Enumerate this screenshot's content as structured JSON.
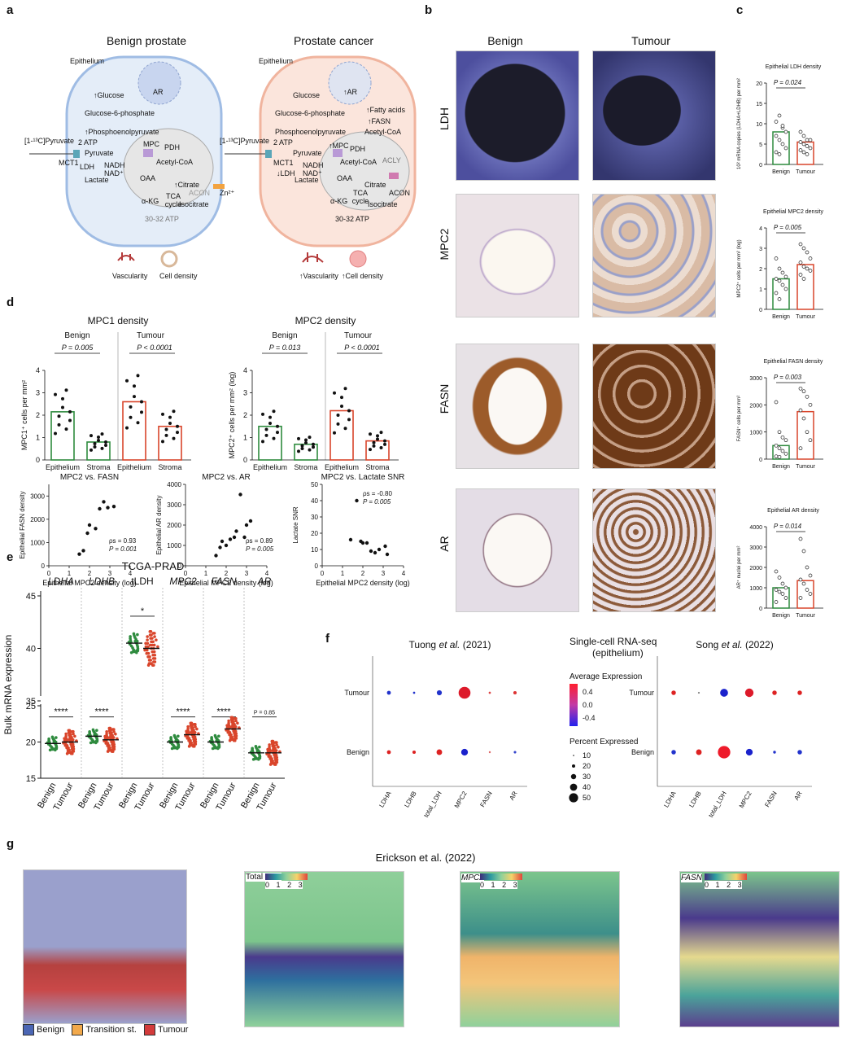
{
  "panel_letters": [
    "a",
    "b",
    "c",
    "d",
    "e",
    "f",
    "g"
  ],
  "a": {
    "benign_title": "Benign prostate",
    "cancer_title": "Prostate cancer",
    "epithelium": "Epithelium",
    "benign": {
      "ar": "AR",
      "glucose": "↑Glucose",
      "g6p": "Glucose-6-phosphate",
      "pep": "↑Phosphoenolpyruvate",
      "atp": "2 ATP",
      "pyruvate_in": "[1-¹³C]Pyruvate",
      "pyruvate": "Pyruvate",
      "mpc": "MPC",
      "pdh": "PDH",
      "acetyl": "Acetyl-CoA",
      "mct1": "MCT1",
      "ldh": "LDH",
      "nadh": "NADH",
      "nad": "NAD⁺",
      "lactate": "Lactate",
      "oaa": "OAA",
      "citrate": "↑Citrate",
      "tca": "TCA cycle",
      "akg": "α-KG",
      "isocitrate": "Isocitrate",
      "acon": "ACON",
      "zn": "Zn²⁺",
      "atp2": "30-32 ATP",
      "vasc": "Vascularity",
      "cell": "Cell density"
    },
    "cancer": {
      "ar": "↑AR",
      "glucose": "Glucose",
      "g6p": "Glucose-6-phosphate",
      "pep": "Phosphoenolpyruvate",
      "atp": "2 ATP",
      "pyruvate_in": "[1-¹³C]Pyruvate",
      "pyruvate": "Pyruvate",
      "mpc": "↑MPC",
      "pdh": "PDH",
      "acetyl": "Acetyl-CoA",
      "mct1": "MCT1",
      "ldh": "↓LDH",
      "nadh": "NADH",
      "nad": "NAD⁺",
      "lactate": "Lactate",
      "fa": "↑Fatty acids",
      "fasn": "↑FASN",
      "acetyl2": "Acetyl-CoA",
      "acly": "ACLY",
      "oaa": "OAA",
      "citrate": "Citrate",
      "tca": "TCA cycle",
      "akg": "α-KG",
      "isocitrate": "Isocitrate",
      "acon": "ACON",
      "atp2": "30-32 ATP",
      "vasc": "↑Vascularity",
      "cell": "↑Cell density"
    }
  },
  "b": {
    "cols": [
      "Benign",
      "Tumour"
    ],
    "rows": [
      "LDH",
      "MPC2",
      "FASN",
      "AR"
    ]
  },
  "c": {
    "ldh": {
      "title": "Epithelial LDH density",
      "ylabel": "10² mRNA copies (LDHA+LDHB) per mm²",
      "p": "P = 0.024",
      "yticks": [
        "0",
        "5",
        "10",
        "15",
        "20"
      ],
      "cats": [
        "Benign",
        "Tumour"
      ]
    },
    "mpc2": {
      "title": "Epithelial MPC2 density",
      "ylabel": "MPC2⁺ cells per mm² (log)",
      "p": "P = 0.005",
      "yticks": [
        "0",
        "1",
        "2",
        "3",
        "4"
      ],
      "cats": [
        "Benign",
        "Tumour"
      ]
    },
    "fasn": {
      "title": "Epithelial FASN density",
      "ylabel": "FASN⁺ cells per mm²",
      "p": "P = 0.003",
      "yticks": [
        "0",
        "1000",
        "2000",
        "3000"
      ],
      "cats": [
        "Benign",
        "Tumour"
      ]
    },
    "ar": {
      "title": "Epithelial AR density",
      "ylabel": "AR⁺ nuclei per mm²",
      "p": "P = 0.014",
      "yticks": [
        "0",
        "1000",
        "2000",
        "3000",
        "4000"
      ],
      "cats": [
        "Benign",
        "Tumour"
      ]
    }
  },
  "d": {
    "mpc1": {
      "title": "MPC1 density",
      "ylabel": "MPC1⁺ cells per mm²",
      "groups": [
        "Benign",
        "Tumour"
      ],
      "p": [
        "P = 0.005",
        "P < 0.0001"
      ],
      "cats": [
        "Epithelium",
        "Stroma",
        "Epithelium",
        "Stroma"
      ],
      "yticks": [
        "0",
        "1",
        "2",
        "3",
        "4"
      ]
    },
    "mpc2": {
      "title": "MPC2 density",
      "ylabel": "MPC2⁺ cells per mm² (log)",
      "groups": [
        "Benign",
        "Tumour"
      ],
      "p": [
        "P = 0.013",
        "P < 0.0001"
      ],
      "cats": [
        "Epithelium",
        "Stroma",
        "Epithelium",
        "Stroma"
      ],
      "yticks": [
        "0",
        "1",
        "2",
        "3",
        "4"
      ]
    },
    "sc1": {
      "title": "MPC2 vs. FASN",
      "ylabel": "Epithelial FASN density",
      "xlabel": "Epithelial MPC2 density (log)",
      "rho": "ρs = 0.93",
      "p": "P = 0.001",
      "yticks": [
        "0",
        "1000",
        "2000",
        "3000"
      ],
      "xticks": [
        "0",
        "1",
        "2",
        "3",
        "4"
      ]
    },
    "sc2": {
      "title": "MPC2 vs. AR",
      "ylabel": "Epithelial AR density",
      "xlabel": "Epithelial MPC2 density (log)",
      "rho": "ρs = 0.89",
      "p": "P = 0.005",
      "yticks": [
        "0",
        "1000",
        "2000",
        "3000",
        "4000"
      ],
      "xticks": [
        "0",
        "1",
        "2",
        "3",
        "4"
      ]
    },
    "sc3": {
      "title": "MPC2 vs. Lactate SNR",
      "ylabel": "Lactate SNR",
      "xlabel": "Epithelial MPC2 density (log)",
      "rho": "ρs = -0.80",
      "p": "P = 0.005",
      "yticks": [
        "0",
        "10",
        "20",
        "30",
        "40",
        "50"
      ],
      "xticks": [
        "0",
        "1",
        "2",
        "3",
        "4"
      ]
    }
  },
  "e": {
    "title": "TCGA-PRAD",
    "ylabel": "Bulk mRNA expression",
    "genes": [
      "LDHA",
      "LDHB",
      "tLDH",
      "MPC2",
      "FASN",
      "AR"
    ],
    "sig": [
      "****",
      "****",
      "*",
      "****",
      "****",
      "P = 0.85"
    ],
    "cats": [
      "Benign",
      "Tumour"
    ],
    "yticks": [
      "15",
      "20",
      "25",
      "35",
      "40",
      "45"
    ]
  },
  "f": {
    "title": "Single-cell RNA-seq",
    "subtitle": "(epithelium)",
    "left": "Tuong et al. (2021)",
    "right": "Song et al. (2022)",
    "rows": [
      "Tumour",
      "Benign"
    ],
    "genes": [
      "LDHA",
      "LDHB",
      "total_LDH",
      "MPC2",
      "FASN",
      "AR"
    ],
    "avg": "Average Expression",
    "avg_ticks": [
      "0.4",
      "0.0",
      "-0.4"
    ],
    "pct": "Percent Expressed",
    "pct_ticks": [
      "10",
      "20",
      "30",
      "40",
      "50"
    ]
  },
  "g": {
    "title": "Erickson et al. (2022)",
    "legend": [
      "Benign",
      "Transition st.",
      "Tumour"
    ],
    "maps": [
      "Total LDH",
      "MPC2",
      "FASN"
    ],
    "scale": [
      "0",
      "1",
      "2",
      "3"
    ]
  },
  "chart_data": [
    {
      "type": "bar",
      "title": "Epithelial LDH density",
      "categories": [
        "Benign",
        "Tumour"
      ],
      "values": [
        8,
        5.5
      ],
      "ylim": [
        0,
        20
      ]
    },
    {
      "type": "bar",
      "title": "Epithelial MPC2 density",
      "categories": [
        "Benign",
        "Tumour"
      ],
      "values": [
        1.5,
        2.2
      ],
      "ylim": [
        0,
        4
      ]
    },
    {
      "type": "bar",
      "title": "Epithelial FASN density",
      "categories": [
        "Benign",
        "Tumour"
      ],
      "values": [
        500,
        1750
      ],
      "ylim": [
        0,
        3000
      ]
    },
    {
      "type": "bar",
      "title": "Epithelial AR density",
      "categories": [
        "Benign",
        "Tumour"
      ],
      "values": [
        1000,
        1350
      ],
      "ylim": [
        0,
        4000
      ]
    },
    {
      "type": "bar",
      "title": "MPC1 density",
      "categories": [
        "Epithelium",
        "Stroma",
        "Epithelium",
        "Stroma"
      ],
      "values": [
        2.15,
        0.8,
        2.6,
        1.5
      ],
      "ylim": [
        0,
        4
      ]
    },
    {
      "type": "bar",
      "title": "MPC2 density",
      "categories": [
        "Epithelium",
        "Stroma",
        "Epithelium",
        "Stroma"
      ],
      "values": [
        1.5,
        0.7,
        2.2,
        0.85
      ],
      "ylim": [
        0,
        4
      ]
    },
    {
      "type": "scatter",
      "title": "MPC2 vs. FASN",
      "x": [
        1.5,
        1.7,
        1.9,
        2.0,
        2.3,
        2.5,
        2.7,
        2.9,
        3.2
      ],
      "y": [
        500,
        650,
        1400,
        1750,
        1600,
        2450,
        2750,
        2500,
        2550
      ],
      "xlim": [
        0,
        4
      ],
      "ylim": [
        0,
        3500
      ]
    },
    {
      "type": "scatter",
      "title": "MPC2 vs. AR",
      "x": [
        1.5,
        1.7,
        1.8,
        2.0,
        2.2,
        2.4,
        2.5,
        2.7,
        2.9,
        3.0,
        3.2
      ],
      "y": [
        500,
        900,
        1200,
        1000,
        1300,
        1400,
        1700,
        3500,
        1400,
        2000,
        2200
      ],
      "xlim": [
        0,
        4
      ],
      "ylim": [
        0,
        4000
      ]
    },
    {
      "type": "scatter",
      "title": "MPC2 vs. Lactate SNR",
      "x": [
        1.4,
        1.7,
        1.9,
        2.0,
        2.2,
        2.4,
        2.6,
        2.8,
        3.1,
        3.2
      ],
      "y": [
        16,
        40,
        15,
        14,
        14,
        9,
        8,
        10,
        12,
        7
      ],
      "xlim": [
        0,
        4
      ],
      "ylim": [
        0,
        50
      ]
    }
  ]
}
